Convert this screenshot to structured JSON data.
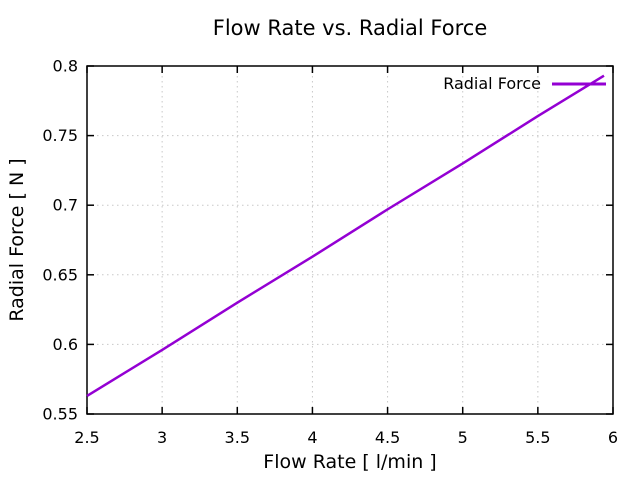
{
  "chart_data": {
    "type": "line",
    "title": "Flow Rate vs. Radial Force",
    "xlabel": "Flow Rate [ l/min ]",
    "ylabel": "Radial Force [ N ]",
    "xlim": [
      2.5,
      6
    ],
    "ylim": [
      0.55,
      0.8
    ],
    "xticks": [
      2.5,
      3,
      3.5,
      4,
      4.5,
      5,
      5.5,
      6
    ],
    "xtick_labels": [
      "2.5",
      "3",
      "3.5",
      "4",
      "4.5",
      "5",
      "5.5",
      "6"
    ],
    "yticks": [
      0.55,
      0.6,
      0.65,
      0.7,
      0.75,
      0.8
    ],
    "ytick_labels": [
      "0.55",
      "0.6",
      "0.65",
      "0.7",
      "0.75",
      "0.8"
    ],
    "grid": true,
    "grid_style": "dotted",
    "grid_color": "#c8c8c8",
    "axis_color": "#000000",
    "background_color": "#ffffff",
    "legend": {
      "position": "top-right-inside",
      "entries": [
        {
          "label": "Radial Force",
          "color": "#9400D3"
        }
      ]
    },
    "series": [
      {
        "name": "Radial Force",
        "color": "#9400D3",
        "x": [
          2.5,
          3.0,
          3.5,
          4.0,
          4.5,
          5.0,
          5.5,
          5.94
        ],
        "y": [
          0.563,
          0.596,
          0.63,
          0.663,
          0.697,
          0.73,
          0.764,
          0.793
        ]
      }
    ]
  }
}
